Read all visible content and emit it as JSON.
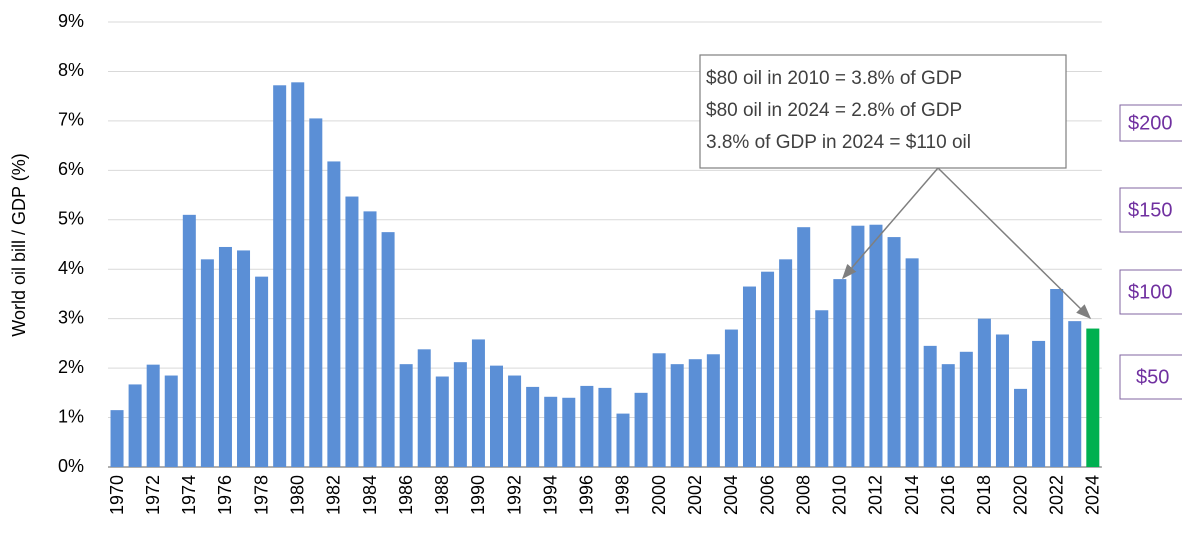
{
  "chart_data": {
    "type": "bar",
    "y_label": "World oil bill / GDP (%)",
    "categories": [
      "1970",
      null,
      "1972",
      null,
      "1974",
      null,
      "1976",
      null,
      "1978",
      null,
      "1980",
      null,
      "1982",
      null,
      "1984",
      null,
      "1986",
      null,
      "1988",
      null,
      "1990",
      null,
      "1992",
      null,
      "1994",
      null,
      "1996",
      null,
      "1998",
      null,
      "2000",
      null,
      "2002",
      null,
      "2004",
      null,
      "2006",
      null,
      "2008",
      null,
      "2010",
      null,
      "2012",
      null,
      "2014",
      null,
      "2016",
      null,
      "2018",
      null,
      "2020",
      null,
      "2022",
      null,
      "2024"
    ],
    "values": [
      1.15,
      1.67,
      2.07,
      1.85,
      5.1,
      4.2,
      4.45,
      4.38,
      3.85,
      7.72,
      7.78,
      7.05,
      6.18,
      5.47,
      5.17,
      4.75,
      2.08,
      2.38,
      1.83,
      2.12,
      2.58,
      2.05,
      1.85,
      1.62,
      1.42,
      1.4,
      1.64,
      1.6,
      1.08,
      1.5,
      2.3,
      2.08,
      2.18,
      2.28,
      2.78,
      3.65,
      3.95,
      4.2,
      4.85,
      3.17,
      3.8,
      4.88,
      4.9,
      4.65,
      4.22,
      2.45,
      2.08,
      2.33,
      3.0,
      2.68,
      1.58,
      2.55,
      3.6,
      2.95,
      2.8
    ],
    "colors": [
      "#5b8fd6",
      "#5b8fd6",
      "#5b8fd6",
      "#5b8fd6",
      "#5b8fd6",
      "#5b8fd6",
      "#5b8fd6",
      "#5b8fd6",
      "#5b8fd6",
      "#5b8fd6",
      "#5b8fd6",
      "#5b8fd6",
      "#5b8fd6",
      "#5b8fd6",
      "#5b8fd6",
      "#5b8fd6",
      "#5b8fd6",
      "#5b8fd6",
      "#5b8fd6",
      "#5b8fd6",
      "#5b8fd6",
      "#5b8fd6",
      "#5b8fd6",
      "#5b8fd6",
      "#5b8fd6",
      "#5b8fd6",
      "#5b8fd6",
      "#5b8fd6",
      "#5b8fd6",
      "#5b8fd6",
      "#5b8fd6",
      "#5b8fd6",
      "#5b8fd6",
      "#5b8fd6",
      "#5b8fd6",
      "#5b8fd6",
      "#5b8fd6",
      "#5b8fd6",
      "#5b8fd6",
      "#5b8fd6",
      "#5b8fd6",
      "#5b8fd6",
      "#5b8fd6",
      "#5b8fd6",
      "#5b8fd6",
      "#5b8fd6",
      "#5b8fd6",
      "#5b8fd6",
      "#5b8fd6",
      "#5b8fd6",
      "#5b8fd6",
      "#5b8fd6",
      "#5b8fd6",
      "#5b8fd6",
      "#00b050"
    ],
    "ylim": [
      0,
      9
    ],
    "yticks": [
      {
        "value": 0,
        "label": "0%"
      },
      {
        "value": 1,
        "label": "1%"
      },
      {
        "value": 2,
        "label": "2%"
      },
      {
        "value": 3,
        "label": "3%"
      },
      {
        "value": 4,
        "label": "4%"
      },
      {
        "value": 5,
        "label": "5%"
      },
      {
        "value": 6,
        "label": "6%"
      },
      {
        "value": 7,
        "label": "7%"
      },
      {
        "value": 8,
        "label": "8%"
      },
      {
        "value": 9,
        "label": "9%"
      }
    ],
    "grid": true,
    "annotation": [
      "$80 oil in 2010 = 3.8% of GDP",
      "$80 oil in 2024 = 2.8% of GDP",
      "3.8% of GDP in 2024 = $110 oil"
    ],
    "price_labels": [
      "$200",
      "$150",
      "$100",
      "$50"
    ]
  }
}
